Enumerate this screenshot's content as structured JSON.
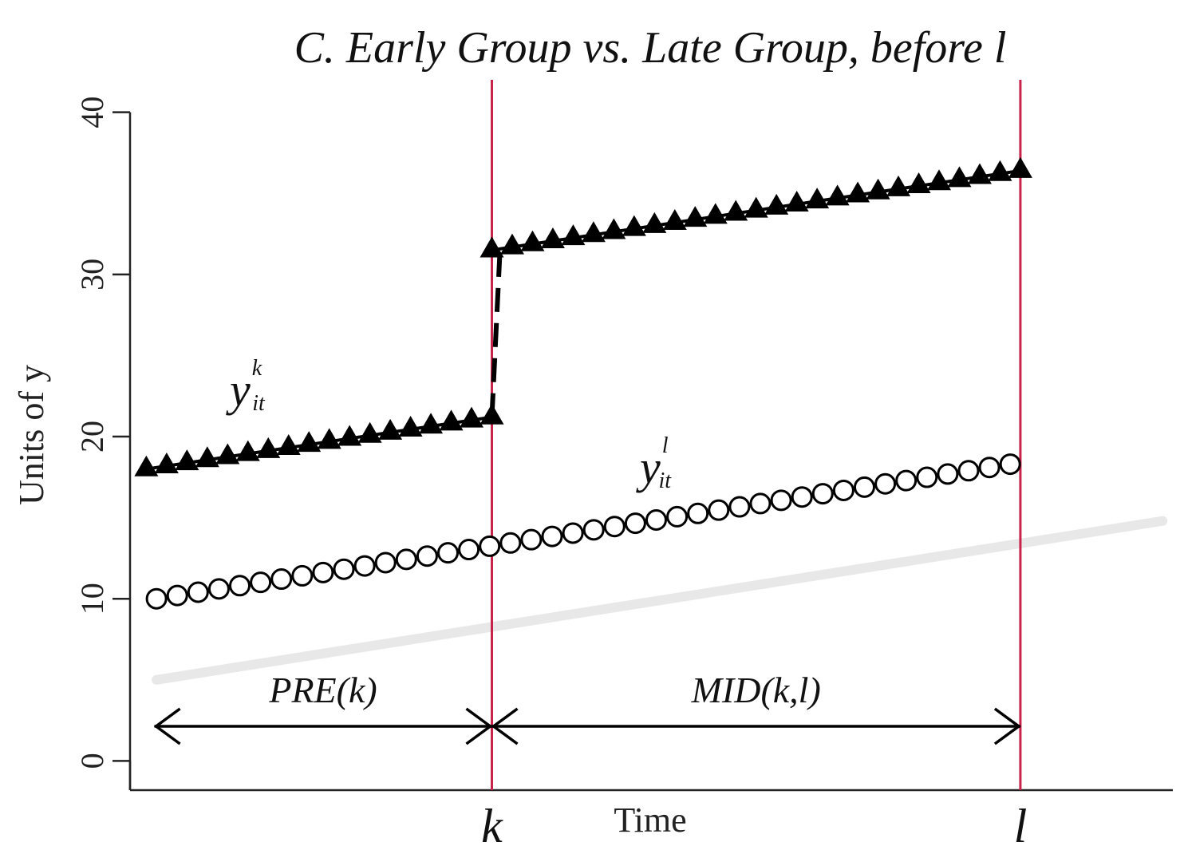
{
  "chart_data": {
    "type": "line",
    "title": "C. Early Group vs. Late Group, before l",
    "xlabel": "Time",
    "ylabel": "Units of y",
    "xlim": [
      -0.8,
      50.5
    ],
    "ylim": [
      -1.8,
      42
    ],
    "yticks": [
      0,
      10,
      20,
      30,
      40
    ],
    "markers": [
      {
        "label": "k",
        "x": 17,
        "color": "#c8234a"
      },
      {
        "label": "l",
        "x": 43,
        "color": "#c8234a"
      }
    ],
    "periods": [
      {
        "label": "PRE(k)",
        "x_start": 0.4,
        "x_end": 17
      },
      {
        "label": "MID(k,l)",
        "x_start": 17,
        "x_end": 43
      }
    ],
    "series": [
      {
        "name": "y^k_it",
        "symbol": "y",
        "superscript": "k",
        "subscript": "it",
        "marker": "filled-triangle",
        "color": "#000000",
        "segments": [
          {
            "x": [
              0,
              17
            ],
            "y": [
              18.0,
              21.2
            ],
            "points": 18
          },
          {
            "x": [
              17,
              43
            ],
            "y": [
              31.5,
              36.4
            ],
            "points": 27
          }
        ],
        "connector": {
          "x": [
            17,
            17.4
          ],
          "y": [
            21.2,
            31.5
          ],
          "style": "dashed"
        }
      },
      {
        "name": "y^l_it",
        "symbol": "y",
        "superscript": "l",
        "subscript": "it",
        "marker": "open-circle",
        "color": "#000000",
        "segments": [
          {
            "x": [
              0.5,
              42.5
            ],
            "y": [
              10.0,
              18.3
            ],
            "points": 42
          }
        ]
      },
      {
        "name": "trend",
        "marker": "none",
        "color": "#e8e8e8",
        "segments": [
          {
            "x": [
              0.5,
              50
            ],
            "y": [
              5.0,
              14.8
            ]
          }
        ]
      }
    ]
  }
}
